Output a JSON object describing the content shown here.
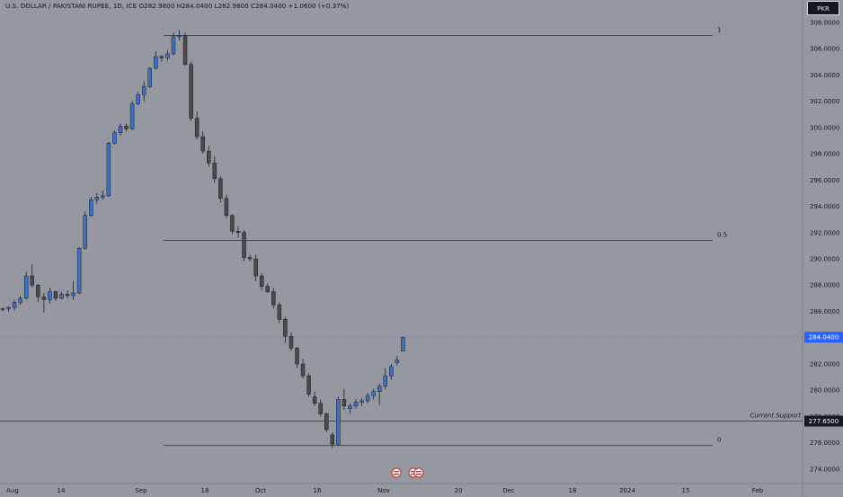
{
  "header": {
    "legend": "U.S. DOLLAR / PAKISTANI RUPEE, 1D, ICE  O282.9800  H284.0400  L282.9800  C284.0400  +1.0600 (+0.37%)",
    "currency_button": "PKR"
  },
  "colors": {
    "background": "#9598a1",
    "up": "#3d6fc9",
    "down": "#4a4a4a",
    "fib_line": "#4b4b4b",
    "last_price_badge": "#2962ff",
    "support_badge": "#131722",
    "text": "#131722"
  },
  "chart_data": {
    "type": "candlestick",
    "title": "U.S. DOLLAR / PAKISTANI RUPEE, 1D, ICE",
    "ylim": [
      272.9,
      309.7
    ],
    "y_ticks": [
      "274.0000",
      "276.0000",
      "278.0000",
      "280.0000",
      "282.0000",
      "286.0000",
      "288.0000",
      "290.0000",
      "292.0000",
      "294.0000",
      "296.0000",
      "298.0000",
      "300.0000",
      "302.0000",
      "304.0000",
      "306.0000",
      "308.0000"
    ],
    "x_ticks": [
      "Aug",
      "14",
      "Sep",
      "18",
      "Oct",
      "16",
      "Nov",
      "20",
      "Dec",
      "18",
      "2024",
      "15",
      "Feb"
    ],
    "last_price": "284.0400",
    "support_price": "277.6500",
    "support_label": "Current Support",
    "fib_levels": [
      {
        "label": "1",
        "price": 307.0
      },
      {
        "label": "0.5",
        "price": 291.4
      },
      {
        "label": "0",
        "price": 275.8
      }
    ],
    "candles": [
      [
        286.2,
        286.3,
        286.0,
        286.2
      ],
      [
        286.2,
        286.4,
        286.0,
        286.3
      ],
      [
        286.3,
        286.9,
        286.1,
        286.7
      ],
      [
        286.7,
        287.2,
        286.5,
        287.0
      ],
      [
        287.0,
        289.0,
        286.9,
        288.7
      ],
      [
        288.7,
        289.6,
        287.8,
        288.0
      ],
      [
        288.0,
        288.1,
        286.7,
        287.1
      ],
      [
        287.1,
        287.4,
        285.9,
        286.9
      ],
      [
        286.9,
        287.8,
        286.6,
        287.5
      ],
      [
        287.5,
        287.6,
        286.8,
        287.0
      ],
      [
        287.0,
        287.5,
        286.9,
        287.3
      ],
      [
        287.3,
        287.6,
        287.0,
        287.2
      ],
      [
        287.2,
        288.3,
        286.9,
        287.4
      ],
      [
        287.4,
        290.9,
        287.3,
        290.8
      ],
      [
        290.8,
        293.6,
        290.7,
        293.3
      ],
      [
        293.3,
        294.7,
        293.2,
        294.5
      ],
      [
        294.5,
        295.0,
        294.2,
        294.7
      ],
      [
        294.7,
        295.2,
        294.5,
        294.8
      ],
      [
        294.8,
        298.9,
        294.7,
        298.8
      ],
      [
        298.8,
        299.8,
        298.7,
        299.6
      ],
      [
        299.6,
        300.3,
        299.4,
        300.1
      ],
      [
        300.1,
        300.3,
        299.7,
        299.9
      ],
      [
        299.9,
        302.0,
        299.8,
        301.8
      ],
      [
        301.8,
        302.7,
        301.7,
        302.5
      ],
      [
        302.5,
        303.5,
        302.0,
        303.1
      ],
      [
        303.1,
        304.6,
        303.0,
        304.5
      ],
      [
        304.5,
        305.8,
        304.4,
        305.4
      ],
      [
        305.4,
        305.5,
        305.0,
        305.3
      ],
      [
        305.3,
        305.9,
        305.1,
        305.6
      ],
      [
        305.6,
        307.2,
        305.5,
        306.9
      ],
      [
        306.9,
        307.4,
        306.6,
        307.0
      ],
      [
        307.0,
        307.2,
        304.7,
        304.8
      ],
      [
        304.8,
        305.0,
        300.5,
        300.7
      ],
      [
        300.7,
        301.2,
        299.1,
        299.3
      ],
      [
        299.3,
        299.7,
        298.0,
        298.2
      ],
      [
        298.2,
        298.6,
        297.0,
        297.3
      ],
      [
        297.3,
        297.8,
        295.8,
        296.1
      ],
      [
        296.1,
        296.3,
        294.3,
        294.6
      ],
      [
        294.6,
        294.9,
        293.1,
        293.3
      ],
      [
        293.3,
        293.4,
        291.9,
        292.1
      ],
      [
        292.1,
        292.5,
        291.6,
        292.0
      ],
      [
        292.0,
        292.2,
        289.8,
        290.1
      ],
      [
        290.1,
        290.3,
        289.8,
        290.0
      ],
      [
        290.0,
        290.3,
        288.3,
        288.7
      ],
      [
        288.7,
        288.9,
        287.6,
        287.9
      ],
      [
        287.9,
        288.1,
        287.4,
        287.5
      ],
      [
        287.5,
        287.8,
        286.2,
        286.5
      ],
      [
        286.5,
        286.7,
        285.1,
        285.4
      ],
      [
        285.4,
        285.6,
        283.6,
        284.1
      ],
      [
        284.1,
        284.4,
        283.0,
        283.2
      ],
      [
        283.2,
        283.3,
        281.7,
        282.0
      ],
      [
        282.0,
        282.4,
        280.9,
        281.1
      ],
      [
        281.1,
        281.3,
        279.5,
        279.7
      ],
      [
        279.5,
        279.9,
        278.8,
        279.0
      ],
      [
        279.0,
        279.3,
        278.0,
        278.2
      ],
      [
        278.2,
        278.3,
        276.8,
        277.0
      ],
      [
        276.6,
        276.8,
        275.6,
        275.9
      ],
      [
        275.9,
        279.5,
        275.8,
        279.3
      ],
      [
        279.3,
        280.1,
        278.5,
        278.8
      ],
      [
        278.6,
        279.0,
        278.2,
        278.8
      ],
      [
        278.8,
        279.3,
        278.6,
        279.1
      ],
      [
        279.1,
        279.4,
        278.8,
        279.2
      ],
      [
        279.2,
        279.8,
        279.0,
        279.6
      ],
      [
        279.6,
        280.1,
        279.3,
        279.9
      ],
      [
        279.9,
        280.5,
        278.9,
        280.3
      ],
      [
        280.3,
        281.7,
        280.1,
        281.1
      ],
      [
        281.1,
        282.0,
        280.8,
        281.8
      ],
      [
        282.1,
        282.6,
        281.9,
        282.3
      ],
      [
        282.98,
        284.04,
        282.98,
        284.04
      ]
    ]
  }
}
